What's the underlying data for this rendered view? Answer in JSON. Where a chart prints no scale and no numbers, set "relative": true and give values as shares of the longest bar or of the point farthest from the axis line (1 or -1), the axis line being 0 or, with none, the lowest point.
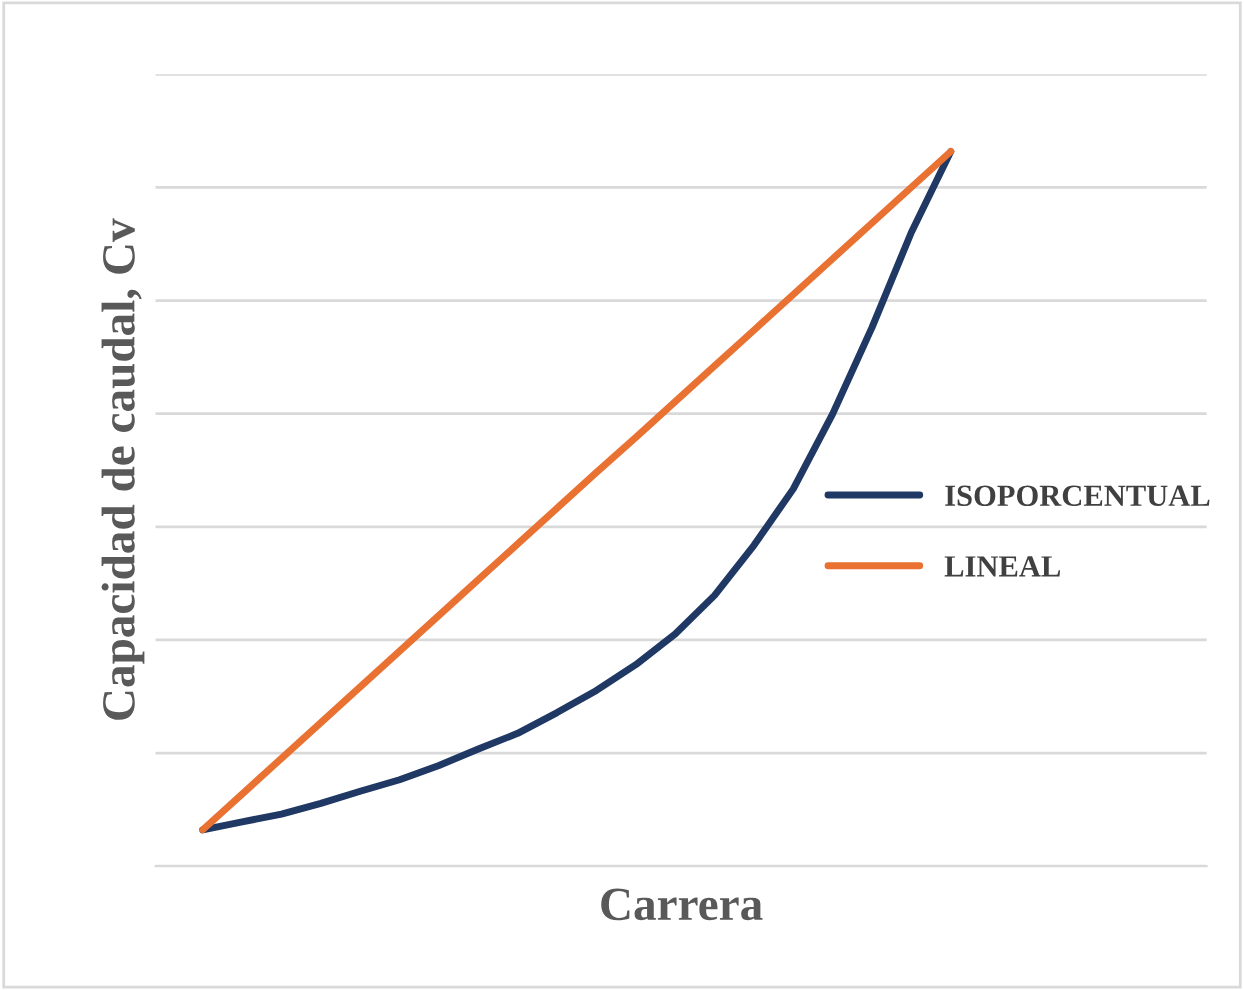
{
  "chart_data": {
    "type": "line",
    "relative": true,
    "xlabel": "Carrera",
    "ylabel": "Capacidad de caudal, Cv",
    "categories": [
      null,
      null,
      null,
      null,
      null,
      null,
      null,
      null,
      null,
      null,
      null,
      null,
      null,
      null,
      null,
      null,
      null,
      null,
      null,
      null
    ],
    "series": [
      {
        "name": "ISOPORCENTUAL",
        "color": "#203864",
        "values": [
          0.051,
          0.062,
          0.073,
          0.088,
          0.105,
          0.121,
          0.141,
          0.164,
          0.186,
          0.215,
          0.246,
          0.282,
          0.325,
          0.379,
          0.449,
          0.528,
          0.633,
          0.754,
          0.887,
          1.0
        ]
      },
      {
        "name": "LINEAL",
        "color": "#e97132",
        "values": [
          0.051,
          0.101,
          0.151,
          0.201,
          0.251,
          0.301,
          0.351,
          0.401,
          0.451,
          0.501,
          0.551,
          0.6,
          0.65,
          0.7,
          0.75,
          0.8,
          0.85,
          0.9,
          0.95,
          1.0
        ]
      }
    ],
    "grid": "y",
    "legend": "right",
    "marker": "none",
    "line_style": "solid"
  }
}
